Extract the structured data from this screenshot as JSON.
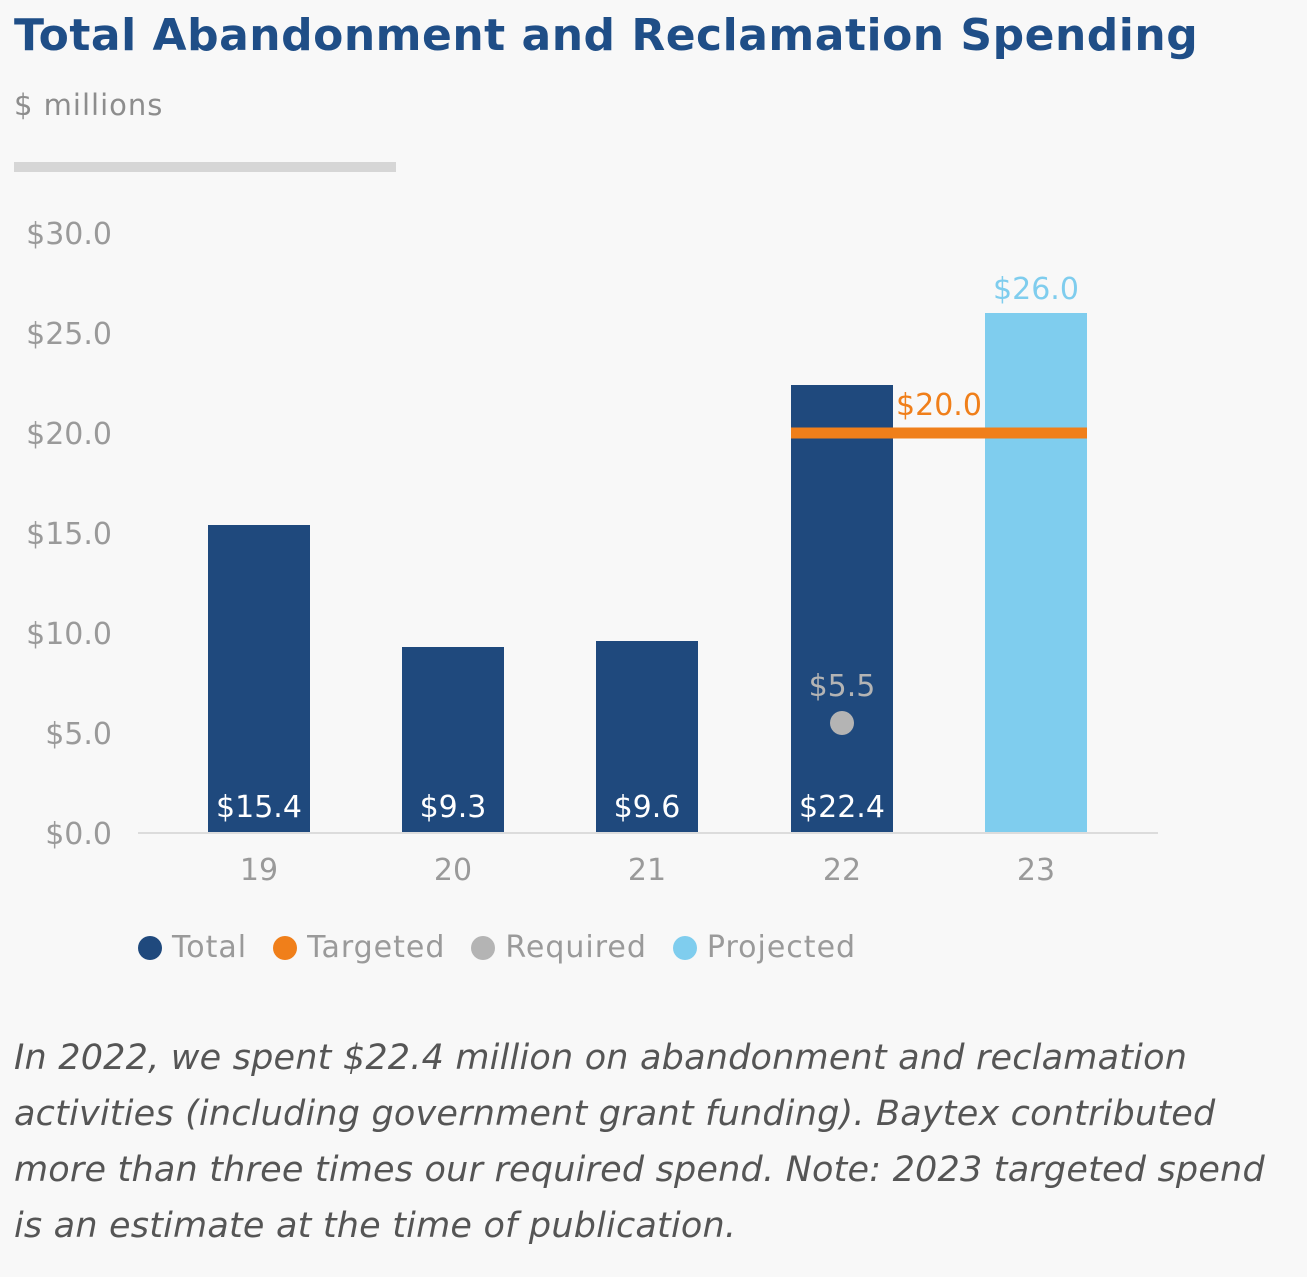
{
  "title": "Total Abandonment and Reclamation Spending",
  "subtitle": "$ millions",
  "note": "In 2022, we spent $22.4 million on abandonment and reclamation activities (including government grant funding). Baytex contributed more than three times our required spend. Note: 2023 targeted spend is an estimate at the time of publication.",
  "colors": {
    "total": "#1f497d",
    "targeted": "#f07f1a",
    "required": "#b4b4b4",
    "projected": "#7fcdee"
  },
  "chart_data": {
    "type": "bar",
    "title": "Total Abandonment and Reclamation Spending",
    "ylabel": "$ millions",
    "ylim": [
      0,
      30
    ],
    "yticks": [
      "$0.0",
      "$5.0",
      "$10.0",
      "$15.0",
      "$20.0",
      "$25.0",
      "$30.0"
    ],
    "categories": [
      "19",
      "20",
      "21",
      "22",
      "23"
    ],
    "series": [
      {
        "name": "Total",
        "values": [
          15.4,
          9.3,
          9.6,
          22.4,
          null
        ],
        "labels": [
          "$15.4",
          "$9.3",
          "$9.6",
          "$22.4",
          ""
        ]
      },
      {
        "name": "Projected",
        "values": [
          null,
          null,
          null,
          null,
          26.0
        ],
        "labels": [
          "",
          "",
          "",
          "",
          "$26.0"
        ]
      },
      {
        "name": "Targeted",
        "values": [
          null,
          null,
          null,
          20.0,
          20.0
        ],
        "label": "$20.0"
      },
      {
        "name": "Required",
        "values": [
          null,
          null,
          null,
          5.5,
          null
        ],
        "label": "$5.5"
      }
    ],
    "legend": [
      "Total",
      "Targeted",
      "Required",
      "Projected"
    ],
    "grid": false
  }
}
